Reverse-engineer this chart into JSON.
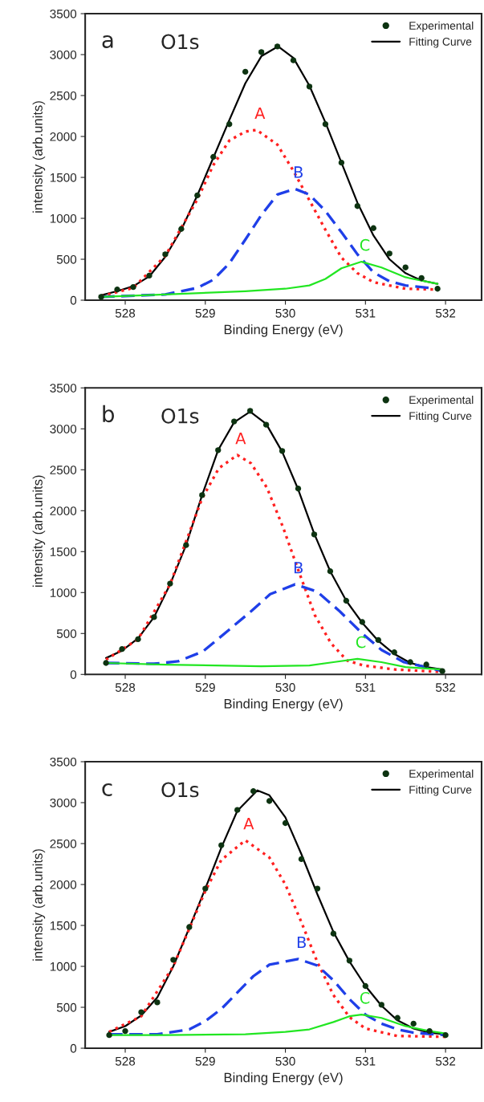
{
  "chart_data": [
    {
      "type": "line",
      "xlabel": "Binding Energy (eV)",
      "ylabel": "intensity (arb.units)",
      "xlim": [
        527.5,
        532.45
      ],
      "xticks": [
        528,
        529,
        530,
        531,
        532
      ],
      "ylim": [
        0,
        3500
      ],
      "yticks": [
        0,
        500,
        1000,
        1500,
        2000,
        2500,
        3000,
        3500
      ],
      "grid": false,
      "legend": "top right",
      "annotations": [
        "a",
        "O1s",
        "A",
        "B",
        "C"
      ],
      "series": [
        {
          "name": "Experimental",
          "type": "scatter",
          "marker": "circle",
          "color": "#0d3311",
          "x": [
            527.7,
            527.9,
            528.1,
            528.3,
            528.5,
            528.7,
            528.9,
            529.1,
            529.3,
            529.5,
            529.7,
            529.9,
            530.1,
            530.3,
            530.5,
            530.7,
            530.9,
            531.1,
            531.3,
            531.5,
            531.7,
            531.9
          ],
          "values": [
            40,
            130,
            160,
            300,
            560,
            870,
            1280,
            1750,
            2150,
            2790,
            3030,
            3100,
            2930,
            2610,
            2150,
            1680,
            1150,
            880,
            570,
            400,
            270,
            140
          ]
        },
        {
          "name": "Fitting Curve",
          "line_style": "solid",
          "color": "#000000",
          "x": [
            527.7,
            527.9,
            528.1,
            528.3,
            528.5,
            528.7,
            528.9,
            529.1,
            529.3,
            529.5,
            529.7,
            529.91,
            530.1,
            530.3,
            530.5,
            530.7,
            530.9,
            531.1,
            531.3,
            531.5,
            531.7,
            531.9
          ],
          "values": [
            60,
            110,
            170,
            290,
            530,
            860,
            1280,
            1740,
            2200,
            2650,
            2980,
            3100,
            2960,
            2620,
            2170,
            1680,
            1190,
            790,
            500,
            330,
            240,
            200
          ]
        },
        {
          "line_style": "dotted",
          "color": "#ff2020",
          "x": [
            527.7,
            528.1,
            528.5,
            528.9,
            529.1,
            529.3,
            529.5,
            529.64,
            529.9,
            530.1,
            530.3,
            530.5,
            530.7,
            530.9,
            531.1,
            531.5,
            531.9
          ],
          "values": [
            50,
            150,
            540,
            1230,
            1650,
            1950,
            2060,
            2080,
            1900,
            1580,
            1220,
            860,
            520,
            330,
            220,
            140,
            130
          ]
        },
        {
          "line_style": "dashed",
          "color": "#1f3fe8",
          "x": [
            527.7,
            528.5,
            528.9,
            529.1,
            529.3,
            529.5,
            529.7,
            529.9,
            530.12,
            530.3,
            530.5,
            530.7,
            530.9,
            531.1,
            531.3,
            531.5,
            531.9
          ],
          "values": [
            40,
            70,
            150,
            250,
            450,
            740,
            1040,
            1290,
            1360,
            1290,
            1090,
            830,
            560,
            340,
            230,
            180,
            140
          ]
        },
        {
          "line_style": "solid",
          "color": "#22e622",
          "x": [
            527.7,
            528.5,
            529.5,
            530.0,
            530.3,
            530.5,
            530.7,
            530.95,
            531.2,
            531.5,
            531.9
          ],
          "values": [
            40,
            70,
            110,
            140,
            180,
            260,
            390,
            470,
            400,
            280,
            200
          ]
        }
      ]
    },
    {
      "type": "line",
      "xlabel": "Binding Energy (eV)",
      "ylabel": "intensity (arb.units)",
      "xlim": [
        527.5,
        532.45
      ],
      "xticks": [
        528,
        529,
        530,
        531,
        532
      ],
      "ylim": [
        0,
        3500
      ],
      "yticks": [
        0,
        500,
        1000,
        1500,
        2000,
        2500,
        3000,
        3500
      ],
      "grid": false,
      "legend": "top right",
      "annotations": [
        "b",
        "O1s",
        "A",
        "B",
        "C"
      ],
      "series": [
        {
          "name": "Experimental",
          "type": "scatter",
          "marker": "circle",
          "color": "#0d3311",
          "x": [
            527.76,
            527.96,
            528.16,
            528.36,
            528.56,
            528.76,
            528.96,
            529.16,
            529.36,
            529.56,
            529.76,
            529.96,
            530.16,
            530.36,
            530.56,
            530.76,
            530.96,
            531.16,
            531.36,
            531.56,
            531.76,
            531.96
          ],
          "values": [
            140,
            310,
            430,
            700,
            1110,
            1580,
            2190,
            2740,
            3090,
            3220,
            3050,
            2730,
            2270,
            1710,
            1260,
            900,
            640,
            420,
            270,
            150,
            120,
            40
          ]
        },
        {
          "name": "Fitting Curve",
          "line_style": "solid",
          "color": "#000000",
          "x": [
            527.76,
            527.96,
            528.16,
            528.36,
            528.56,
            528.76,
            528.96,
            529.16,
            529.36,
            529.56,
            529.76,
            529.96,
            530.16,
            530.36,
            530.56,
            530.76,
            530.96,
            531.16,
            531.36,
            531.56,
            531.76,
            531.96
          ],
          "values": [
            200,
            290,
            440,
            700,
            1100,
            1580,
            2190,
            2740,
            3080,
            3210,
            3060,
            2720,
            2260,
            1720,
            1260,
            900,
            630,
            410,
            250,
            140,
            90,
            60
          ]
        },
        {
          "line_style": "dotted",
          "color": "#ff2020",
          "x": [
            527.76,
            528.16,
            528.56,
            528.96,
            529.17,
            529.4,
            529.57,
            529.77,
            529.97,
            530.17,
            530.37,
            530.57,
            530.77,
            530.97,
            531.37,
            531.96
          ],
          "values": [
            180,
            430,
            1100,
            2150,
            2520,
            2680,
            2580,
            2280,
            1800,
            1250,
            720,
            380,
            170,
            110,
            60,
            30
          ]
        },
        {
          "line_style": "dashed",
          "color": "#1f3fe8",
          "x": [
            527.76,
            528.36,
            528.66,
            528.97,
            529.29,
            529.57,
            529.81,
            530.12,
            530.4,
            530.68,
            530.96,
            531.2,
            531.48,
            531.97
          ],
          "values": [
            140,
            130,
            160,
            280,
            540,
            770,
            980,
            1100,
            1010,
            770,
            500,
            300,
            150,
            40
          ]
        },
        {
          "line_style": "solid",
          "color": "#22e622",
          "x": [
            527.76,
            528.5,
            529.7,
            530.3,
            530.6,
            530.9,
            531.2,
            531.5,
            531.96
          ],
          "values": [
            140,
            120,
            100,
            110,
            150,
            190,
            150,
            90,
            60
          ]
        }
      ]
    },
    {
      "type": "line",
      "xlabel": "Binding Energy (eV)",
      "ylabel": "intensity (arb.units)",
      "xlim": [
        527.5,
        532.45
      ],
      "xticks": [
        528,
        529,
        530,
        531,
        532
      ],
      "ylim": [
        0,
        3500
      ],
      "yticks": [
        0,
        500,
        1000,
        1500,
        2000,
        2500,
        3000,
        3500
      ],
      "grid": false,
      "legend": "top right",
      "annotations": [
        "c",
        "O1s",
        "A",
        "B",
        "C"
      ],
      "series": [
        {
          "name": "Experimental",
          "type": "scatter",
          "marker": "circle",
          "color": "#0d3311",
          "x": [
            527.8,
            528.0,
            528.2,
            528.4,
            528.6,
            528.8,
            529.0,
            529.2,
            529.4,
            529.6,
            529.8,
            530.0,
            530.2,
            530.4,
            530.6,
            530.8,
            531.0,
            531.2,
            531.4,
            531.6,
            531.8,
            532.0
          ],
          "values": [
            160,
            210,
            440,
            560,
            1080,
            1480,
            1950,
            2480,
            2910,
            3140,
            3020,
            2750,
            2310,
            1950,
            1400,
            1070,
            760,
            530,
            370,
            300,
            210,
            160
          ]
        },
        {
          "name": "Fitting Curve",
          "line_style": "solid",
          "color": "#000000",
          "x": [
            527.8,
            528.0,
            528.2,
            528.4,
            528.6,
            528.8,
            529.0,
            529.2,
            529.4,
            529.65,
            529.8,
            530.0,
            530.2,
            530.4,
            530.6,
            530.8,
            531.0,
            531.2,
            531.4,
            531.6,
            531.8,
            532.0
          ],
          "values": [
            200,
            270,
            400,
            620,
            1000,
            1470,
            1950,
            2450,
            2900,
            3150,
            3090,
            2820,
            2370,
            1880,
            1420,
            1060,
            760,
            520,
            340,
            240,
            190,
            170
          ]
        },
        {
          "line_style": "dotted",
          "color": "#ff2020",
          "x": [
            527.8,
            528.2,
            528.6,
            529.0,
            529.2,
            529.5,
            529.8,
            530.0,
            530.2,
            530.4,
            530.6,
            530.8,
            531.0,
            531.4,
            532.0
          ],
          "values": [
            200,
            390,
            1000,
            1920,
            2300,
            2540,
            2330,
            2000,
            1540,
            1050,
            650,
            380,
            240,
            150,
            140
          ]
        },
        {
          "line_style": "dashed",
          "color": "#1f3fe8",
          "x": [
            527.8,
            528.4,
            528.8,
            529.0,
            529.2,
            529.4,
            529.6,
            529.8,
            530.16,
            530.4,
            530.6,
            530.8,
            531.0,
            531.2,
            531.4,
            531.6,
            532.0
          ],
          "values": [
            170,
            170,
            230,
            330,
            480,
            680,
            880,
            1020,
            1090,
            1010,
            830,
            600,
            410,
            300,
            230,
            190,
            160
          ]
        },
        {
          "line_style": "solid",
          "color": "#22e622",
          "x": [
            527.8,
            528.5,
            529.5,
            530.0,
            530.3,
            530.6,
            530.8,
            530.95,
            531.2,
            531.5,
            531.8,
            532.0
          ],
          "values": [
            160,
            160,
            170,
            200,
            230,
            320,
            390,
            410,
            370,
            270,
            210,
            180
          ]
        }
      ]
    }
  ]
}
